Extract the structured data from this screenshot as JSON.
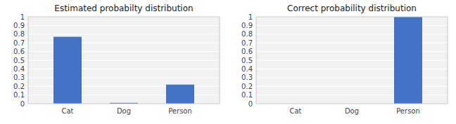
{
  "chart_data": [
    {
      "type": "bar",
      "title": "Estimated probabilty distribution",
      "categories": [
        "Cat",
        "Dog",
        "Person"
      ],
      "values": [
        0.77,
        0.01,
        0.22
      ],
      "color": "#4472C4",
      "ylim": [
        0,
        1.0
      ],
      "yticks": [
        0,
        0.1,
        0.2,
        0.3,
        0.4,
        0.5,
        0.6,
        0.7,
        0.8,
        0.9,
        1
      ],
      "grid": true
    },
    {
      "type": "bar",
      "title": "Correct probability distribution",
      "categories": [
        "Cat",
        "Dog",
        "Person"
      ],
      "values": [
        0.0,
        0.0,
        1.0
      ],
      "color": "#4472C4",
      "ylim": [
        0,
        1.0
      ],
      "yticks": [
        0,
        0.1,
        0.2,
        0.3,
        0.4,
        0.5,
        0.6,
        0.7,
        0.8,
        0.9,
        1
      ],
      "grid": true
    }
  ]
}
